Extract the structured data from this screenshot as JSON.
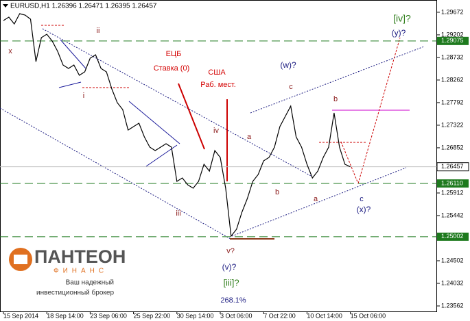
{
  "chart_data": {
    "type": "line",
    "title": "EURUSD,H1  1.26396 1.26471 1.26395 1.26457",
    "categories": [
      "15 Sep 2014",
      null,
      null,
      null,
      null,
      null,
      null,
      null,
      "18 Sep 14:00",
      null,
      null,
      null,
      null,
      null,
      null,
      null,
      "23 Sep 06:00",
      null,
      null,
      null,
      null,
      null,
      null,
      null,
      "25 Sep 22:00",
      null,
      null,
      null,
      null,
      null,
      null,
      null,
      "30 Sep 14:00",
      null,
      null,
      null,
      null,
      null,
      null,
      null,
      "3 Oct 06:00",
      null,
      null,
      null,
      null,
      null,
      null,
      null,
      "7 Oct 22:00",
      null,
      null,
      null,
      null,
      null,
      null,
      null,
      "10 Oct 14:00",
      null,
      null,
      null,
      null,
      null,
      null,
      null,
      "15 Oct 06:00",
      null,
      null,
      null,
      null,
      null,
      null,
      null,
      null,
      null,
      null,
      null,
      null,
      null,
      null,
      null,
      null
    ],
    "series": [
      {
        "name": "EURUSD,H1",
        "color": "#000000",
        "values": [
          1.295,
          1.29571,
          1.29429,
          1.29642,
          1.29614,
          1.29528,
          1.28645,
          1.29144,
          1.29215,
          1.29073,
          1.28859,
          1.28574,
          1.28503,
          1.28574,
          1.28361,
          1.28432,
          1.28717,
          1.28788,
          1.28503,
          1.28432,
          1.28076,
          1.27791,
          1.27649,
          1.27221,
          1.27293,
          1.27364,
          1.27079,
          1.26865,
          1.26794,
          1.26865,
          1.26937,
          1.26865,
          1.26153,
          1.26225,
          1.26082,
          1.26011,
          1.26153,
          1.26509,
          1.26367,
          1.26794,
          1.26652,
          1.26011,
          1.25014,
          1.25157,
          1.25513,
          1.25797,
          1.26153,
          1.26296,
          1.26581,
          1.26652,
          1.26865,
          1.27293,
          1.27506,
          1.2772,
          1.27079,
          1.26865,
          1.26509,
          1.26225,
          1.26367,
          1.26652,
          1.26865,
          1.27577,
          1.26865,
          1.26509,
          1.26457,
          null,
          null,
          null,
          null,
          null,
          null,
          null,
          null,
          null,
          null,
          null,
          null,
          null,
          null,
          null,
          null
        ]
      }
    ],
    "ylim": [
      1.23448,
      1.29927
    ],
    "yticks": [
      {
        "value": 1.29672,
        "label": "1.29672"
      },
      {
        "value": 1.29202,
        "label": "1.29202"
      },
      {
        "value": 1.28732,
        "label": "1.28732"
      },
      {
        "value": 1.28262,
        "label": "1.28262"
      },
      {
        "value": 1.27792,
        "label": "1.27792"
      },
      {
        "value": 1.27322,
        "label": "1.27322"
      },
      {
        "value": 1.26852,
        "label": "1.26852"
      },
      {
        "value": 1.25912,
        "label": "1.25912"
      },
      {
        "value": 1.25442,
        "label": "1.25442"
      },
      {
        "value": 1.24502,
        "label": "1.24502"
      },
      {
        "value": 1.24032,
        "label": "1.24032"
      },
      {
        "value": 1.23562,
        "label": "1.23562"
      }
    ],
    "price_levels": [
      {
        "value": 1.29075,
        "label": "1.29075"
      },
      {
        "value": 1.2611,
        "label": "1.26110"
      },
      {
        "value": 1.25002,
        "label": "1.25002"
      }
    ],
    "level_color": "#1e7a1e",
    "current_price": {
      "value": 1.26457,
      "label": "1.26457"
    },
    "annotations": [
      "x",
      "ii",
      "i",
      "ЕЦБ",
      "Ставка (0)",
      "США",
      "Раб. мест.",
      "iv",
      "iii",
      "v?",
      "(v)?",
      "[iii]?",
      "268.1%",
      "a",
      "b",
      "(w)?",
      "c",
      "b",
      "a",
      "c",
      "(x)?",
      "[iv]?",
      "(y)?"
    ]
  },
  "logo": {
    "name": "ПАНТЕОН",
    "sub": "ФИНАНС",
    "line1": "Ваш надежный",
    "line2": "инвестиционный брокер"
  }
}
